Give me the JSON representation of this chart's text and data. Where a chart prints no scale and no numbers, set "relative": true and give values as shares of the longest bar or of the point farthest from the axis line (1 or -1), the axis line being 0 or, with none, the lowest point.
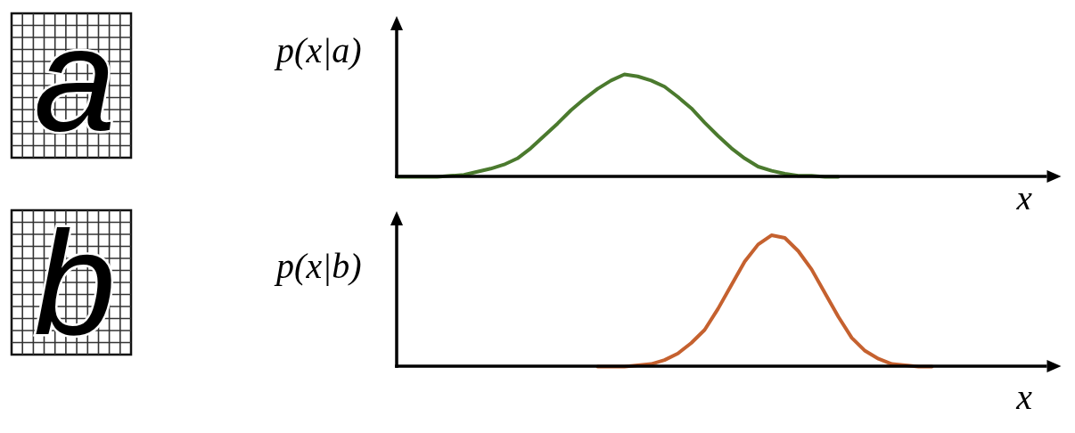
{
  "chart_data": [
    {
      "type": "line",
      "ylabel": "p(x|a)",
      "xlabel": "x",
      "relative": true,
      "annotations": [
        "a"
      ],
      "categories": [
        null,
        null,
        null,
        null,
        null,
        null,
        null,
        null,
        null,
        null,
        null,
        null,
        null,
        null,
        null,
        null,
        null,
        null,
        null,
        null,
        null,
        null,
        null,
        null,
        null,
        null,
        null,
        null,
        null,
        null,
        null,
        null,
        null,
        null,
        null,
        null,
        null,
        null,
        null,
        null,
        null,
        null,
        null,
        null,
        null,
        null,
        null,
        null,
        null,
        null
      ],
      "series": [
        {
          "color": "#4b7a2e",
          "values": [
            0,
            0,
            0,
            0,
            0.01,
            0.02,
            0.05,
            0.08,
            0.12,
            0.18,
            0.28,
            0.4,
            0.52,
            0.65,
            0.76,
            0.86,
            0.94,
            1,
            0.98,
            0.94,
            0.88,
            0.78,
            0.67,
            0.53,
            0.4,
            0.28,
            0.18,
            0.1,
            0.06,
            0.03,
            0.01,
            0.01,
            0,
            0,
            null,
            null,
            null,
            null,
            null,
            null,
            null,
            null,
            null,
            null,
            null,
            null,
            null,
            null,
            null,
            null
          ]
        }
      ]
    },
    {
      "type": "line",
      "ylabel": "p(x|b)",
      "xlabel": "x",
      "relative": true,
      "annotations": [
        "b"
      ],
      "categories": [
        null,
        null,
        null,
        null,
        null,
        null,
        null,
        null,
        null,
        null,
        null,
        null,
        null,
        null,
        null,
        null,
        null,
        null,
        null,
        null,
        null,
        null,
        null,
        null,
        null,
        null,
        null,
        null,
        null,
        null,
        null,
        null,
        null,
        null,
        null,
        null,
        null,
        null,
        null,
        null,
        null,
        null,
        null,
        null,
        null,
        null,
        null,
        null,
        null,
        null
      ],
      "series": [
        {
          "color": "#c5612f",
          "values": [
            null,
            null,
            null,
            null,
            null,
            null,
            null,
            null,
            null,
            null,
            null,
            null,
            null,
            null,
            null,
            0,
            0,
            0,
            0.01,
            0.02,
            0.05,
            0.1,
            0.18,
            0.28,
            0.44,
            0.62,
            0.8,
            0.93,
            1,
            0.98,
            0.88,
            0.74,
            0.56,
            0.38,
            0.22,
            0.12,
            0.06,
            0.02,
            0.01,
            0,
            0,
            null,
            null,
            null,
            null,
            null,
            null,
            null,
            null,
            null
          ]
        }
      ]
    }
  ]
}
